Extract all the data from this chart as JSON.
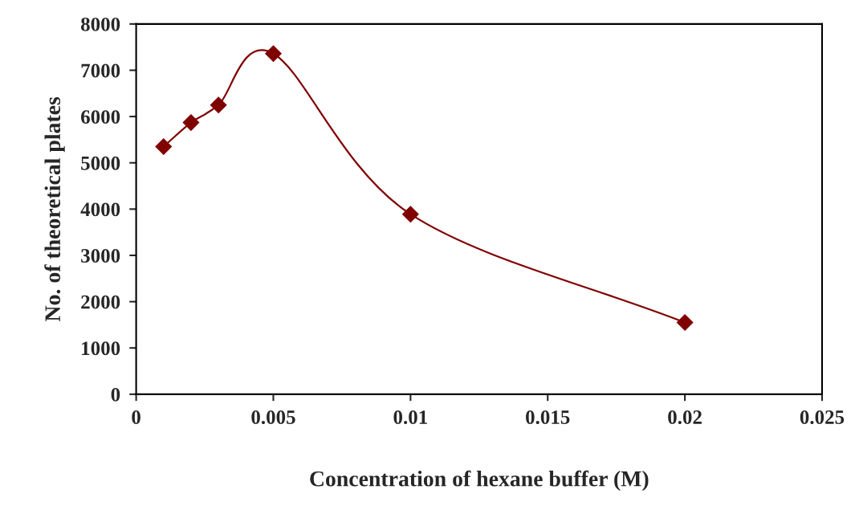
{
  "chart_data": {
    "type": "line",
    "xlabel": "Concentration of hexane buffer (M)",
    "ylabel": "No. of theoretical plates",
    "x": [
      0.001,
      0.002,
      0.003,
      0.005,
      0.01,
      0.02
    ],
    "series": [
      {
        "color": "#800000",
        "values": [
          5350,
          5870,
          6250,
          7360,
          3890,
          1550
        ]
      }
    ],
    "xlim": [
      0,
      0.025
    ],
    "xticks": [
      0,
      0.005,
      0.01,
      0.015,
      0.02,
      0.025
    ],
    "ylim": [
      0,
      8000
    ],
    "yticks": [
      0,
      1000,
      2000,
      3000,
      4000,
      5000,
      6000,
      7000,
      8000
    ],
    "marker": "diamond",
    "line_style": "solid",
    "grid": false,
    "legend": false
  }
}
